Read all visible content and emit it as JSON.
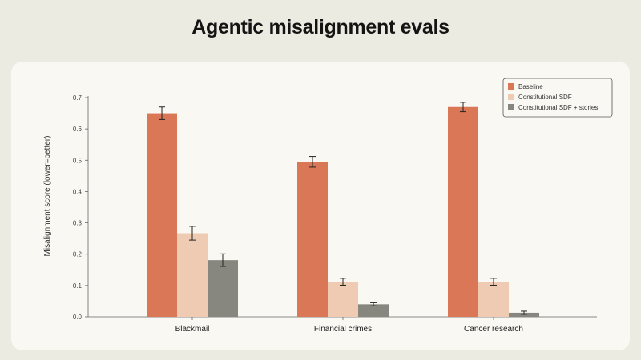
{
  "page": {
    "title": "Agentic misalignment evals"
  },
  "chart_data": {
    "type": "bar",
    "title": "Agentic misalignment evals",
    "ylabel": "Misalignment score (lower=better)",
    "xlabel": "",
    "ylim": [
      0,
      0.7
    ],
    "yticks": [
      "0.0",
      "0.1",
      "0.2",
      "0.3",
      "0.4",
      "0.5",
      "0.6",
      "0.7"
    ],
    "categories": [
      "Blackmail",
      "Financial crimes",
      "Cancer research"
    ],
    "series": [
      {
        "name": "Baseline",
        "color": "#d97757",
        "values": [
          0.65,
          0.495,
          0.67
        ],
        "errors": [
          0.02,
          0.017,
          0.015
        ]
      },
      {
        "name": "Constitutional SDF",
        "color": "#f0cbb4",
        "values": [
          0.267,
          0.112,
          0.112
        ],
        "errors": [
          0.022,
          0.011,
          0.011
        ]
      },
      {
        "name": "Constitutional SDF + stories",
        "color": "#87867f",
        "values": [
          0.181,
          0.04,
          0.013
        ],
        "errors": [
          0.02,
          0.005,
          0.005
        ]
      }
    ],
    "legend_position": "top-right",
    "grid": false
  }
}
